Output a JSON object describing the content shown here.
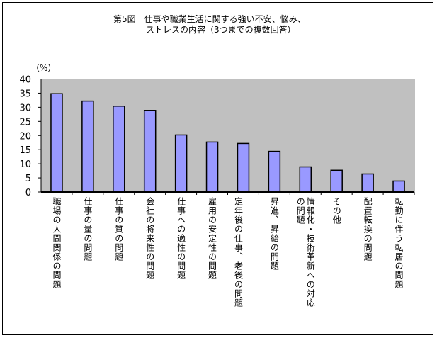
{
  "chart_data": {
    "type": "bar",
    "title_line1": "第5図　仕事や職業生活に関する強い不安、悩み、",
    "title_line2": "ストレスの内容（3つまでの複数回答）",
    "ylabel": "（%）",
    "ylim": [
      0,
      40
    ],
    "yticks": [
      "0",
      "5",
      "10",
      "15",
      "20",
      "25",
      "30",
      "35",
      "40"
    ],
    "categories": [
      "職場の人間関係の問題",
      "仕事の量の問題",
      "仕事の質の問題",
      "会社の将来性の問題",
      "仕事への適性の問題",
      "雇用の安定性の問題",
      "定年後の仕事、老後の問題",
      "昇進、昇給の問題",
      "情報化・技術革新への対応の問題",
      "その他",
      "配置転換の問題",
      "転勤に伴う転居の問題"
    ],
    "values": [
      34.8,
      32.2,
      30.4,
      28.9,
      20.2,
      17.7,
      17.2,
      14.4,
      8.9,
      7.7,
      6.4,
      3.9
    ],
    "grid": false,
    "legend": "none",
    "colors": {
      "bar": "#9999ff",
      "plot_bg": "#c0c0c0"
    }
  }
}
